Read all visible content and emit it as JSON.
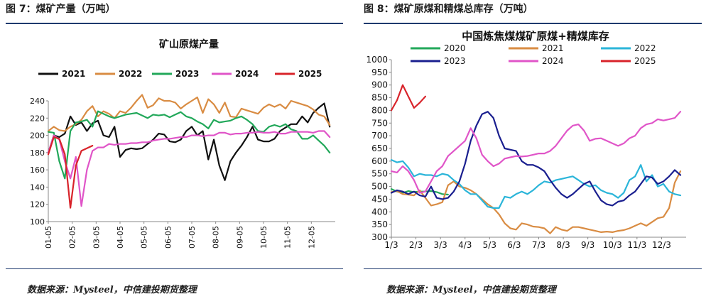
{
  "left": {
    "figure_title": "图 7：煤矿产量（万吨）",
    "source": "数据来源：Mysteel，中信建投期货整理"
  },
  "right": {
    "figure_title": "图 8：煤矿原煤和精煤总库存（万吨）",
    "source": "数据来源：Mysteel，中信建投期货整理"
  },
  "colors": {
    "c2020": "#22a85a",
    "c2021_left": "#111111",
    "c2021_right": "#d98c43",
    "c2022_left": "#d98c43",
    "c2022_right": "#2bb5d9",
    "c2023_left": "#22a85a",
    "c2023_right": "#1a1f8f",
    "c2024": "#e055c8",
    "c2025": "#d8232a",
    "rule": "#1e3a6e"
  },
  "chart_data": [
    {
      "type": "line",
      "title": "矿山原煤产量",
      "xlabel": "",
      "ylabel": "",
      "ylim": [
        100,
        240
      ],
      "yticks": [
        100,
        120,
        140,
        160,
        180,
        200,
        220,
        240
      ],
      "x_ticks": [
        "01-05",
        "02-05",
        "03-05",
        "04-05",
        "05-05",
        "06-05",
        "07-05",
        "08-05",
        "09-05",
        "10-05",
        "11-05",
        "12-05"
      ],
      "x_range": [
        0,
        52
      ],
      "legend_position": "top",
      "grid": false,
      "series": [
        {
          "name": "2021",
          "color_key": "c2021_left",
          "x": [
            0,
            1,
            2,
            3,
            4,
            5,
            6,
            7,
            8,
            9,
            10,
            11,
            12,
            13,
            14,
            15,
            16,
            17,
            18,
            19,
            20,
            21,
            22,
            23,
            24,
            25,
            26,
            27,
            28,
            29,
            30,
            31,
            32,
            33,
            34,
            35,
            36,
            37,
            38,
            39,
            40,
            41,
            42,
            43,
            44,
            45,
            46,
            47,
            48,
            49,
            50,
            51
          ],
          "values": [
            180,
            200,
            198,
            202,
            222,
            212,
            215,
            205,
            214,
            217,
            200,
            198,
            210,
            175,
            183,
            185,
            184,
            185,
            190,
            195,
            202,
            201,
            193,
            192,
            195,
            205,
            210,
            200,
            205,
            172,
            195,
            165,
            148,
            170,
            180,
            188,
            198,
            210,
            195,
            193,
            193,
            196,
            205,
            209,
            213,
            213,
            222,
            215,
            226,
            232,
            237,
            210
          ]
        },
        {
          "name": "2022",
          "color_key": "c2022_left",
          "x": [
            0,
            1,
            2,
            3,
            4,
            5,
            6,
            7,
            8,
            9,
            10,
            11,
            12,
            13,
            14,
            15,
            16,
            17,
            18,
            19,
            20,
            21,
            22,
            23,
            24,
            25,
            26,
            27,
            28,
            29,
            30,
            31,
            32,
            33,
            34,
            35,
            36,
            37,
            38,
            39,
            40,
            41,
            42,
            43,
            44,
            45,
            46,
            47,
            48,
            49,
            50,
            51
          ],
          "values": [
            205,
            210,
            206,
            205,
            210,
            213,
            218,
            228,
            234,
            222,
            228,
            225,
            220,
            228,
            226,
            232,
            240,
            247,
            232,
            235,
            243,
            240,
            240,
            238,
            231,
            236,
            240,
            244,
            226,
            242,
            236,
            226,
            238,
            222,
            221,
            231,
            229,
            227,
            225,
            232,
            236,
            233,
            236,
            231,
            240,
            238,
            236,
            234,
            230,
            224,
            222,
            212
          ]
        },
        {
          "name": "2023",
          "color_key": "c2023_left",
          "x": [
            0,
            1,
            2,
            3,
            4,
            5,
            6,
            7,
            8,
            9,
            10,
            11,
            12,
            13,
            14,
            15,
            16,
            17,
            18,
            19,
            20,
            21,
            22,
            23,
            24,
            25,
            26,
            27,
            28,
            29,
            30,
            31,
            32,
            33,
            34,
            35,
            36,
            37,
            38,
            39,
            40,
            41,
            42,
            43,
            44,
            45,
            46,
            47,
            48,
            49,
            50,
            51
          ],
          "values": [
            204,
            203,
            170,
            150,
            205,
            215,
            216,
            218,
            210,
            228,
            225,
            222,
            220,
            222,
            224,
            225,
            226,
            223,
            220,
            224,
            223,
            224,
            221,
            224,
            227,
            222,
            220,
            216,
            213,
            208,
            218,
            215,
            216,
            217,
            220,
            222,
            218,
            213,
            205,
            204,
            210,
            212,
            210,
            213,
            207,
            205,
            196,
            196,
            200,
            194,
            188,
            180
          ]
        },
        {
          "name": "2024",
          "color_key": "c2024",
          "x": [
            0,
            1,
            2,
            3,
            4,
            5,
            6,
            7,
            8,
            9,
            10,
            11,
            12,
            13,
            14,
            15,
            16,
            17,
            18,
            19,
            20,
            21,
            22,
            23,
            24,
            25,
            26,
            27,
            28,
            29,
            30,
            31,
            32,
            33,
            34,
            35,
            36,
            37,
            38,
            39,
            40,
            41,
            42,
            43,
            44,
            45,
            46,
            47,
            48,
            49,
            50,
            51
          ],
          "values": [
            180,
            200,
            195,
            170,
            150,
            175,
            118,
            160,
            182,
            186,
            186,
            190,
            189,
            190,
            190,
            191,
            191,
            192,
            192,
            194,
            195,
            196,
            196,
            197,
            198,
            198,
            200,
            200,
            199,
            200,
            200,
            203,
            203,
            201,
            202,
            202,
            203,
            203,
            204,
            203,
            203,
            204,
            202,
            202,
            204,
            204,
            204,
            204,
            203,
            205,
            205,
            198
          ]
        },
        {
          "name": "2025",
          "color_key": "c2025",
          "x": [
            0,
            1,
            2,
            3,
            4,
            5,
            6,
            7,
            8
          ],
          "values": [
            178,
            198,
            196,
            178,
            116,
            165,
            182,
            185,
            188
          ]
        }
      ]
    },
    {
      "type": "line",
      "title": "中国炼焦煤煤矿原煤+精煤库存",
      "xlabel": "",
      "ylabel": "",
      "ylim": [
        300,
        1000
      ],
      "yticks": [
        300,
        350,
        400,
        450,
        500,
        550,
        600,
        650,
        700,
        750,
        800,
        850,
        900,
        950,
        1000
      ],
      "x_ticks": [
        "1/3",
        "2/3",
        "3/3",
        "4/3",
        "5/3",
        "6/3",
        "7/3",
        "8/3",
        "9/3",
        "10/3",
        "11/3",
        "12/3"
      ],
      "x_range": [
        0,
        52
      ],
      "legend_position": "top",
      "grid": false,
      "series": [
        {
          "name": "2020",
          "color_key": "c2020",
          "x": [
            0,
            1,
            2,
            3,
            4,
            5,
            6,
            7,
            8,
            9,
            10
          ],
          "values": [
            490,
            480,
            475,
            482,
            478,
            480,
            480,
            482,
            478,
            470,
            468
          ]
        },
        {
          "name": "2021",
          "color_key": "c2021_right",
          "x": [
            0,
            1,
            2,
            3,
            4,
            5,
            6,
            7,
            8,
            9,
            10,
            11,
            12,
            13,
            14,
            15,
            16,
            17,
            18,
            19,
            20,
            21,
            22,
            23,
            24,
            25,
            26,
            27,
            28,
            29,
            30,
            31,
            32,
            33,
            34,
            35,
            36,
            37,
            38,
            39,
            40,
            41,
            42,
            43,
            44,
            45,
            46,
            47,
            48,
            49,
            50,
            51
          ],
          "values": [
            478,
            482,
            470,
            468,
            465,
            485,
            455,
            425,
            430,
            438,
            505,
            520,
            500,
            495,
            485,
            470,
            450,
            430,
            415,
            390,
            355,
            335,
            330,
            355,
            350,
            342,
            340,
            335,
            315,
            340,
            330,
            325,
            340,
            340,
            335,
            330,
            325,
            320,
            322,
            320,
            325,
            328,
            335,
            345,
            355,
            345,
            360,
            375,
            380,
            415,
            515,
            560
          ]
        },
        {
          "name": "2022",
          "color_key": "c2022_right",
          "x": [
            0,
            1,
            2,
            3,
            4,
            5,
            6,
            7,
            8,
            9,
            10,
            11,
            12,
            13,
            14,
            15,
            16,
            17,
            18,
            19,
            20,
            21,
            22,
            23,
            24,
            25,
            26,
            27,
            28,
            29,
            30,
            31,
            32,
            33,
            34,
            35,
            36,
            37,
            38,
            39,
            40,
            41,
            42,
            43,
            44,
            45,
            46,
            47,
            48,
            49,
            50,
            51
          ],
          "values": [
            605,
            595,
            600,
            575,
            540,
            550,
            545,
            545,
            540,
            550,
            545,
            525,
            510,
            485,
            470,
            470,
            445,
            420,
            415,
            415,
            460,
            455,
            470,
            480,
            470,
            485,
            505,
            520,
            515,
            525,
            530,
            535,
            540,
            525,
            510,
            500,
            505,
            485,
            475,
            470,
            455,
            475,
            525,
            540,
            585,
            520,
            545,
            500,
            510,
            480,
            470,
            465
          ]
        },
        {
          "name": "2023",
          "color_key": "c2023_right",
          "x": [
            0,
            1,
            2,
            3,
            4,
            5,
            6,
            7,
            8,
            9,
            10,
            11,
            12,
            13,
            14,
            15,
            16,
            17,
            18,
            19,
            20,
            21,
            22,
            23,
            24,
            25,
            26,
            27,
            28,
            29,
            30,
            31,
            32,
            33,
            34,
            35,
            36,
            37,
            38,
            39,
            40,
            41,
            42,
            43,
            44,
            45,
            46,
            47,
            48,
            49,
            50,
            51
          ],
          "values": [
            475,
            485,
            480,
            470,
            480,
            465,
            460,
            500,
            455,
            450,
            455,
            480,
            520,
            590,
            680,
            740,
            785,
            795,
            770,
            700,
            650,
            645,
            640,
            600,
            585,
            585,
            575,
            560,
            525,
            495,
            470,
            455,
            470,
            490,
            510,
            520,
            480,
            445,
            430,
            425,
            440,
            445,
            465,
            480,
            510,
            540,
            535,
            510,
            520,
            540,
            565,
            545
          ]
        },
        {
          "name": "2024",
          "color_key": "c2024",
          "x": [
            0,
            1,
            2,
            3,
            4,
            5,
            6,
            7,
            8,
            9,
            10,
            11,
            12,
            13,
            14,
            15,
            16,
            17,
            18,
            19,
            20,
            21,
            22,
            23,
            24,
            25,
            26,
            27,
            28,
            29,
            30,
            31,
            32,
            33,
            34,
            35,
            36,
            37,
            38,
            39,
            40,
            41,
            42,
            43,
            44,
            45,
            46,
            47,
            48,
            49,
            50,
            51
          ],
          "values": [
            560,
            555,
            580,
            560,
            525,
            475,
            480,
            520,
            560,
            580,
            620,
            640,
            660,
            680,
            730,
            690,
            625,
            600,
            580,
            590,
            610,
            615,
            620,
            618,
            620,
            625,
            630,
            630,
            640,
            660,
            690,
            720,
            740,
            745,
            720,
            680,
            688,
            690,
            680,
            670,
            660,
            670,
            690,
            700,
            730,
            745,
            750,
            765,
            760,
            765,
            770,
            795
          ]
        },
        {
          "name": "2025",
          "color_key": "c2025",
          "x": [
            0,
            1,
            2,
            3,
            4,
            5,
            6
          ],
          "values": [
            800,
            840,
            900,
            855,
            810,
            830,
            855
          ]
        }
      ]
    }
  ]
}
